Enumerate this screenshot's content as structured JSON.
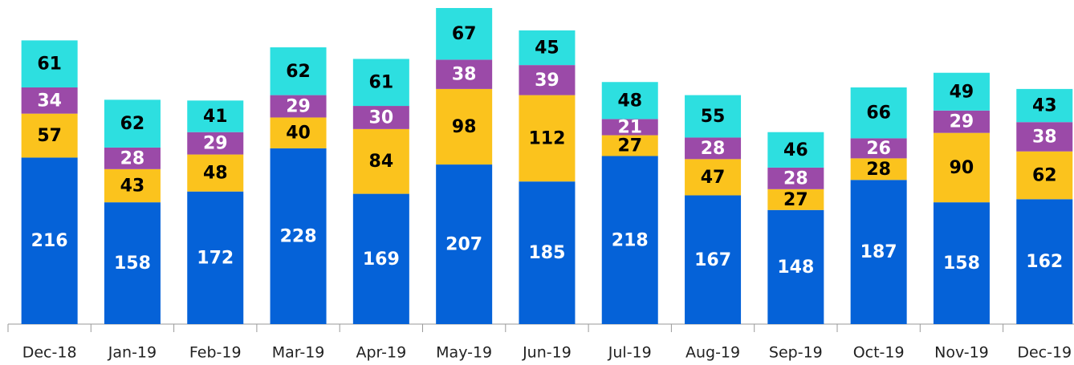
{
  "chart_data": {
    "type": "stacked_bar",
    "categories": [
      "Dec-18",
      "Jan-19",
      "Feb-19",
      "Mar-19",
      "Apr-19",
      "May-19",
      "Jun-19",
      "Jul-19",
      "Aug-19",
      "Sep-19",
      "Oct-19",
      "Nov-19",
      "Dec-19"
    ],
    "series": [
      {
        "color": "#0562d8",
        "values": [
          216,
          158,
          172,
          228,
          169,
          207,
          185,
          218,
          167,
          148,
          187,
          158,
          162
        ]
      },
      {
        "color": "#fbc31d",
        "values": [
          57,
          43,
          48,
          40,
          84,
          98,
          112,
          27,
          47,
          27,
          28,
          90,
          62
        ]
      },
      {
        "color": "#9b4aa8",
        "values": [
          34,
          28,
          29,
          29,
          30,
          38,
          39,
          21,
          28,
          28,
          26,
          29,
          38
        ]
      },
      {
        "color": "#2ddfe0",
        "values": [
          61,
          62,
          41,
          62,
          61,
          67,
          45,
          48,
          55,
          46,
          66,
          49,
          43
        ]
      }
    ]
  }
}
